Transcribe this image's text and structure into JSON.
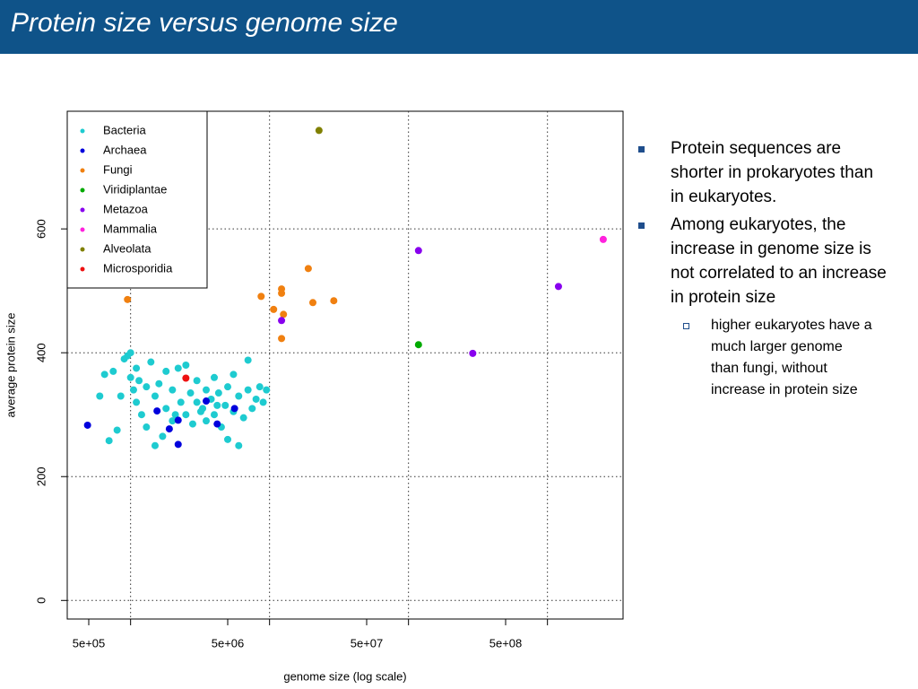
{
  "header": {
    "title": "Protein size versus genome size"
  },
  "bullets": [
    {
      "text": "Protein sequences are shorter in prokaryotes than in eukaryotes.",
      "sub": []
    },
    {
      "text": "Among eukaryotes, the increase in genome size is not correlated to an increase in protein size",
      "sub": [
        "higher eukaryotes have a much larger genome than fungi, without increase in protein size"
      ]
    }
  ],
  "chart_data": {
    "type": "scatter",
    "x_label": "genome size (log scale)",
    "y_label": "average protein size",
    "log_x": true,
    "grid": true,
    "legend": "top-left",
    "xlim": [
      350000,
      3500000000
    ],
    "ylim": [
      -30,
      790
    ],
    "xticks": [
      {
        "value": 500000,
        "label": "5e+05"
      },
      {
        "value": 5000000,
        "label": "5e+06"
      },
      {
        "value": 50000000,
        "label": "5e+07"
      },
      {
        "value": 500000000,
        "label": "5e+08"
      }
    ],
    "xgrid": [
      1000000,
      10000000,
      100000000,
      1000000000
    ],
    "yticks": [
      0,
      200,
      400,
      600
    ],
    "series": [
      {
        "name": "Bacteria",
        "color": "#1ecbd0",
        "x": [
          600000,
          650000,
          700000,
          750000,
          800000,
          850000,
          900000,
          950000,
          1000000,
          1000000,
          1050000,
          1100000,
          1150000,
          1200000,
          1300000,
          1300000,
          1400000,
          1500000,
          1500000,
          1600000,
          1700000,
          1800000,
          1800000,
          2000000,
          2000000,
          2200000,
          2300000,
          2500000,
          2500000,
          2700000,
          2800000,
          3000000,
          3000000,
          3200000,
          3500000,
          3500000,
          3800000,
          4000000,
          4000000,
          4300000,
          4500000,
          4800000,
          5000000,
          5000000,
          5500000,
          5500000,
          6000000,
          6000000,
          6500000,
          7000000,
          7000000,
          7500000,
          8000000,
          8500000,
          9000000,
          9500000,
          1100000,
          3300000,
          2100000,
          4200000
        ],
        "values": [
          330,
          365,
          258,
          370,
          275,
          330,
          390,
          395,
          400,
          360,
          340,
          320,
          355,
          300,
          345,
          280,
          385,
          250,
          330,
          350,
          265,
          370,
          310,
          290,
          340,
          375,
          320,
          380,
          300,
          335,
          285,
          320,
          355,
          305,
          340,
          290,
          325,
          360,
          300,
          335,
          280,
          315,
          345,
          260,
          305,
          365,
          330,
          250,
          295,
          388,
          340,
          310,
          325,
          345,
          320,
          340,
          375,
          310,
          300,
          315
        ]
      },
      {
        "name": "Archaea",
        "color": "#0000dd",
        "x": [
          490000,
          2200000,
          1550000,
          1900000,
          4200000,
          5600000,
          3500000,
          2200000
        ],
        "values": [
          283,
          252,
          306,
          277,
          285,
          310,
          322,
          291
        ]
      },
      {
        "name": "Fungi",
        "color": "#f08010",
        "x": [
          950000,
          8700000,
          10700000,
          12200000,
          12200000,
          12600000,
          12200000,
          19000000,
          20500000,
          29000000
        ],
        "values": [
          486,
          491,
          470,
          503,
          496,
          462,
          423,
          536,
          481,
          484
        ]
      },
      {
        "name": "Viridiplantae",
        "color": "#00aa00",
        "x": [
          118000000
        ],
        "values": [
          413
        ]
      },
      {
        "name": "Metazoa",
        "color": "#8800ee",
        "x": [
          12200000,
          118000000,
          290000000,
          1200000000
        ],
        "values": [
          452,
          565,
          399,
          507
        ]
      },
      {
        "name": "Mammalia",
        "color": "#ff22dd",
        "x": [
          2520000000
        ],
        "values": [
          583
        ]
      },
      {
        "name": "Alveolata",
        "color": "#808000",
        "x": [
          22700000
        ],
        "values": [
          759
        ]
      },
      {
        "name": "Microsporidia",
        "color": "#ee1111",
        "x": [
          2500000
        ],
        "values": [
          359
        ]
      }
    ]
  }
}
